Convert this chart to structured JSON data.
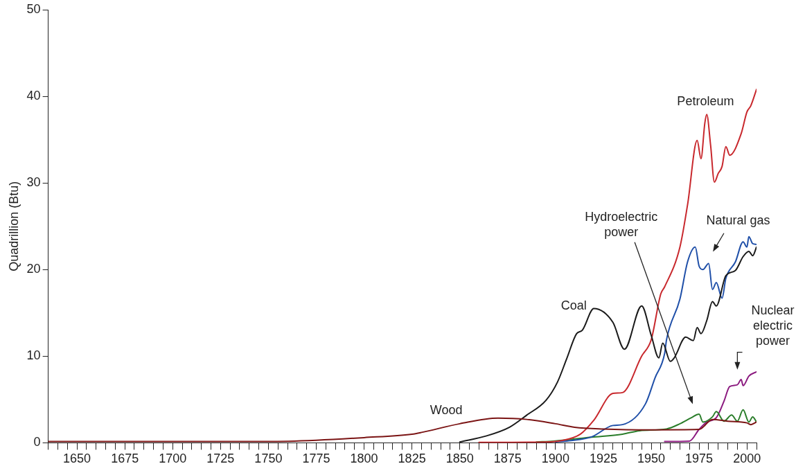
{
  "chart_data": {
    "type": "line",
    "ylabel": "Quadrillion (Btu)",
    "xlim": [
      1635,
      2005
    ],
    "ylim": [
      0,
      50
    ],
    "yticks": [
      0,
      10,
      20,
      30,
      40,
      50
    ],
    "xticks": [
      {
        "value": 1635,
        "label": null
      },
      {
        "value": 1640,
        "label": null
      },
      {
        "value": 1645,
        "label": null
      },
      1650,
      {
        "value": 1655,
        "label": null
      },
      {
        "value": 1660,
        "label": null
      },
      {
        "value": 1665,
        "label": null
      },
      {
        "value": 1670,
        "label": null
      },
      1675,
      {
        "value": 1680,
        "label": null
      },
      {
        "value": 1685,
        "label": null
      },
      {
        "value": 1690,
        "label": null
      },
      {
        "value": 1695,
        "label": null
      },
      1700,
      {
        "value": 1705,
        "label": null
      },
      {
        "value": 1710,
        "label": null
      },
      {
        "value": 1715,
        "label": null
      },
      {
        "value": 1720,
        "label": null
      },
      1725,
      {
        "value": 1730,
        "label": null
      },
      {
        "value": 1735,
        "label": null
      },
      {
        "value": 1740,
        "label": null
      },
      {
        "value": 1745,
        "label": null
      },
      1750,
      {
        "value": 1755,
        "label": null
      },
      {
        "value": 1760,
        "label": null
      },
      {
        "value": 1765,
        "label": null
      },
      {
        "value": 1770,
        "label": null
      },
      1775,
      {
        "value": 1780,
        "label": null
      },
      {
        "value": 1785,
        "label": null
      },
      {
        "value": 1790,
        "label": null
      },
      {
        "value": 1795,
        "label": null
      },
      1800,
      {
        "value": 1805,
        "label": null
      },
      {
        "value": 1810,
        "label": null
      },
      {
        "value": 1815,
        "label": null
      },
      {
        "value": 1820,
        "label": null
      },
      1825,
      {
        "value": 1830,
        "label": null
      },
      {
        "value": 1835,
        "label": null
      },
      {
        "value": 1840,
        "label": null
      },
      {
        "value": 1845,
        "label": null
      },
      1850,
      {
        "value": 1855,
        "label": null
      },
      {
        "value": 1860,
        "label": null
      },
      {
        "value": 1865,
        "label": null
      },
      {
        "value": 1870,
        "label": null
      },
      1875,
      {
        "value": 1880,
        "label": null
      },
      {
        "value": 1885,
        "label": null
      },
      {
        "value": 1890,
        "label": null
      },
      {
        "value": 1895,
        "label": null
      },
      1900,
      {
        "value": 1905,
        "label": null
      },
      {
        "value": 1910,
        "label": null
      },
      {
        "value": 1915,
        "label": null
      },
      {
        "value": 1920,
        "label": null
      },
      1925,
      {
        "value": 1930,
        "label": null
      },
      {
        "value": 1935,
        "label": null
      },
      {
        "value": 1940,
        "label": null
      },
      {
        "value": 1945,
        "label": null
      },
      1950,
      {
        "value": 1955,
        "label": null
      },
      {
        "value": 1960,
        "label": null
      },
      {
        "value": 1965,
        "label": null
      },
      {
        "value": 1970,
        "label": null
      },
      1975,
      {
        "value": 1980,
        "label": null
      },
      {
        "value": 1985,
        "label": null
      },
      {
        "value": 1990,
        "label": null
      },
      {
        "value": 1995,
        "label": null
      },
      2000,
      {
        "value": 2005,
        "label": null
      }
    ],
    "grid": false,
    "legend": false,
    "marker": "none",
    "line_style": "solid",
    "series": [
      {
        "color": "#7b1414",
        "x": [
          1635,
          1700,
          1750,
          1775,
          1800,
          1825,
          1830,
          1850,
          1870,
          1885,
          1900,
          1910,
          1925,
          1950,
          1975,
          1982,
          1990,
          2000,
          2002,
          2005
        ],
        "values": [
          0.15,
          0.15,
          0.15,
          0.3,
          0.6,
          1.0,
          1.2,
          2.2,
          2.85,
          2.7,
          2.2,
          1.8,
          1.6,
          1.5,
          1.55,
          2.7,
          2.5,
          2.3,
          2.1,
          2.4
        ]
      },
      {
        "color": "#1a1a1a",
        "x": [
          1850,
          1864,
          1876,
          1885,
          1895,
          1901,
          1906,
          1911,
          1914,
          1920,
          1930,
          1936,
          1945,
          1950,
          1954,
          1956,
          1960,
          1962,
          1968,
          1972,
          1974,
          1976,
          1979,
          1982,
          1984,
          1989,
          1994,
          1998,
          2001,
          2003,
          2005
        ],
        "values": [
          0.1,
          0.8,
          1.8,
          3.2,
          4.9,
          7.0,
          9.8,
          12.6,
          13.0,
          15.5,
          13.9,
          10.8,
          15.8,
          12.4,
          9.8,
          11.5,
          9.4,
          9.8,
          12.2,
          11.8,
          13.3,
          12.6,
          14.1,
          16.3,
          15.8,
          19.3,
          19.9,
          21.5,
          22.1,
          21.6,
          22.6
        ]
      },
      {
        "color": "#c8282d",
        "x": [
          1860,
          1895,
          1903,
          1913,
          1920,
          1930,
          1935,
          1945,
          1950,
          1955,
          1957,
          1965,
          1969,
          1974,
          1976,
          1978,
          1979,
          1981,
          1983,
          1985,
          1987,
          1989,
          1991,
          1997,
          2000,
          2002,
          2005
        ],
        "values": [
          0.05,
          0.1,
          0.25,
          1.0,
          2.6,
          5.7,
          5.8,
          10.0,
          11.9,
          17.2,
          18.0,
          22.6,
          27.5,
          34.9,
          32.8,
          36.9,
          37.9,
          34.4,
          30.1,
          31.1,
          31.9,
          34.2,
          33.2,
          35.7,
          38.2,
          38.9,
          40.8
        ]
      },
      {
        "color": "#1f4fa8",
        "x": [
          1900,
          1908,
          1919,
          1930,
          1935,
          1947,
          1952,
          1957,
          1958,
          1965,
          1969,
          1973,
          1975,
          1977,
          1980,
          1982,
          1984,
          1987,
          1989,
          1994,
          1998,
          2000,
          2001,
          2003,
          2005
        ],
        "values": [
          0.1,
          0.25,
          0.7,
          2.0,
          2.1,
          4.5,
          7.5,
          10.3,
          11.9,
          16.6,
          20.9,
          22.6,
          20.4,
          20.0,
          20.7,
          17.7,
          18.5,
          16.7,
          19.0,
          20.9,
          23.2,
          22.6,
          23.8,
          23.0,
          22.9
        ]
      },
      {
        "color": "#2a7d2a",
        "x": [
          1890,
          1899,
          1919,
          1935,
          1944,
          1958,
          1965,
          1971,
          1975,
          1977,
          1982,
          1984,
          1988,
          1992,
          1995,
          1998,
          2001,
          2003,
          2005
        ],
        "values": [
          0.1,
          0.2,
          0.65,
          1.0,
          1.4,
          1.6,
          2.2,
          2.9,
          3.3,
          2.4,
          3.0,
          3.6,
          2.5,
          3.2,
          2.5,
          3.8,
          2.4,
          3.0,
          2.4
        ]
      },
      {
        "color": "#8b1a7f",
        "x": [
          1957,
          1970,
          1975,
          1979,
          1984,
          1988,
          1991,
          1995,
          1997,
          1998,
          2001,
          2005
        ],
        "values": [
          0.15,
          0.2,
          1.55,
          2.4,
          2.9,
          4.8,
          6.5,
          6.7,
          7.3,
          6.6,
          7.7,
          8.2
        ]
      }
    ],
    "annotations": [
      "Wood",
      "Coal",
      "Petroleum",
      "Hydroelectric\npower",
      "Natural gas",
      "Nuclear\nelectric\npower"
    ]
  }
}
